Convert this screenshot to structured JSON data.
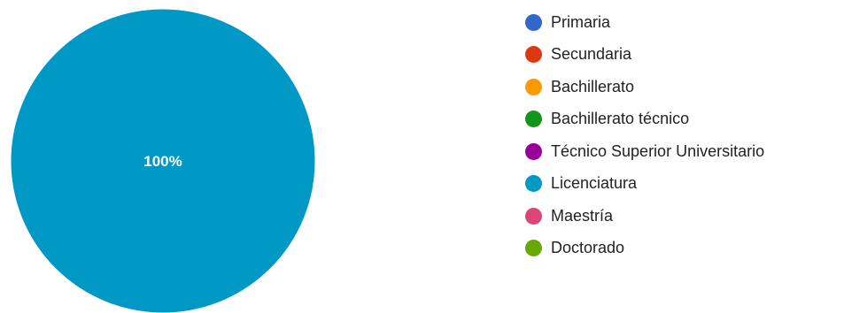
{
  "chart_data": {
    "type": "pie",
    "categories": [
      "Primaria",
      "Secundaria",
      "Bachillerato",
      "Bachillerato técnico",
      "Técnico Superior Universitario",
      "Licenciatura",
      "Maestría",
      "Doctorado"
    ],
    "values": [
      0,
      0,
      0,
      0,
      0,
      100,
      0,
      0
    ],
    "colors": [
      "#3366cc",
      "#dc3912",
      "#ff9900",
      "#109618",
      "#990099",
      "#0099c6",
      "#dd4477",
      "#66aa00"
    ],
    "slice_labels": [
      "",
      "",
      "",
      "",
      "",
      "100%",
      "",
      ""
    ],
    "legend_position": "right"
  }
}
